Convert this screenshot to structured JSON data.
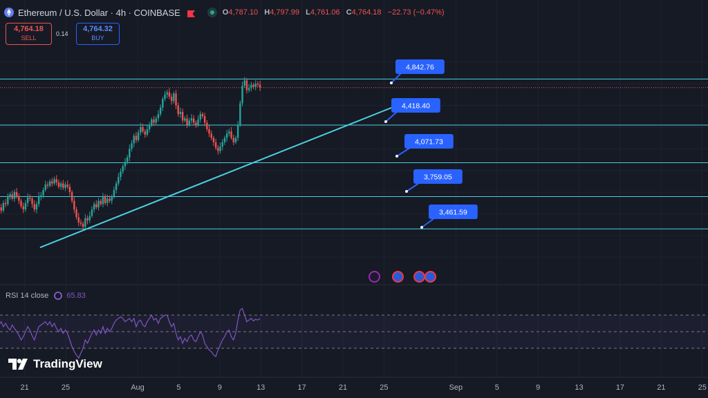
{
  "header": {
    "symbol": "Ethereum / U.S. Dollar · 4h · COINBASE",
    "o_label": "O",
    "o": "4,787.10",
    "h_label": "H",
    "h": "4,797.99",
    "l_label": "L",
    "l": "4,761.06",
    "c_label": "C",
    "c": "4,764.18",
    "change": "−22.73 (−0.47%)"
  },
  "trade": {
    "sell_price": "4,764.18",
    "sell_label": "SELL",
    "spread": "0.14",
    "buy_price": "4,764.32",
    "buy_label": "BUY"
  },
  "rsi": {
    "label": "RSI 14 close",
    "value": "65.83"
  },
  "logo": "TradingView",
  "colors": {
    "up": "#26a69a",
    "down": "#ef5350",
    "rsi": "#7e57c2",
    "levels": "#4dd0e1",
    "callout": "#2962ff",
    "background": "#161a25"
  },
  "chart_data": {
    "type": "candlestick",
    "x_ticks": [
      "21",
      "25",
      "Aug",
      "5",
      "9",
      "13",
      "17",
      "21",
      "25",
      "Sep",
      "5",
      "9",
      "13",
      "17",
      "21",
      "25"
    ],
    "x_tick_days": [
      -11,
      -7,
      0,
      4,
      8,
      12,
      16,
      20,
      24,
      31,
      35,
      39,
      43,
      47,
      51,
      55
    ],
    "horizontal_levels": [
      4842.76,
      4418.4,
      4071.73,
      3759.05,
      3461.59
    ],
    "callouts": [
      "4,842.76",
      "4,418.40",
      "4,071.73",
      "3,759.05",
      "3,461.59"
    ],
    "trendline": {
      "from": [
        -9.5,
        3290
      ],
      "to": [
        25.3,
        4600
      ]
    },
    "last_price": 4764.18,
    "candle_closes": [
      3660,
      3630,
      3700,
      3690,
      3760,
      3780,
      3740,
      3800,
      3760,
      3720,
      3670,
      3640,
      3700,
      3750,
      3740,
      3690,
      3640,
      3690,
      3760,
      3770,
      3820,
      3870,
      3860,
      3900,
      3880,
      3920,
      3890,
      3850,
      3880,
      3840,
      3870,
      3850,
      3800,
      3720,
      3640,
      3570,
      3520,
      3510,
      3480,
      3560,
      3540,
      3580,
      3640,
      3690,
      3660,
      3720,
      3690,
      3760,
      3700,
      3740,
      3720,
      3760,
      3820,
      3880,
      3940,
      3990,
      4040,
      4080,
      4120,
      4200,
      4250,
      4320,
      4280,
      4350,
      4400,
      4360,
      4330,
      4380,
      4420,
      4470,
      4440,
      4480,
      4520,
      4580,
      4660,
      4700,
      4720,
      4680,
      4640,
      4710,
      4600,
      4520,
      4540,
      4460,
      4480,
      4420,
      4460,
      4480,
      4440,
      4420,
      4470,
      4520,
      4500,
      4440,
      4380,
      4340,
      4300,
      4260,
      4210,
      4180,
      4220,
      4260,
      4300,
      4340,
      4360,
      4300,
      4260,
      4300,
      4420,
      4620,
      4780,
      4830,
      4740,
      4760,
      4790,
      4770,
      4800,
      4790,
      4764.18
    ],
    "rsi": [
      58,
      62,
      56,
      60,
      55,
      52,
      58,
      54,
      50,
      46,
      40,
      44,
      50,
      56,
      52,
      45,
      40,
      48,
      56,
      58,
      60,
      62,
      58,
      62,
      56,
      60,
      54,
      50,
      54,
      48,
      52,
      48,
      40,
      32,
      26,
      22,
      18,
      24,
      30,
      40,
      36,
      42,
      48,
      52,
      46,
      52,
      48,
      56,
      48,
      54,
      50,
      54,
      60,
      64,
      66,
      68,
      66,
      62,
      64,
      66,
      62,
      66,
      56,
      62,
      64,
      58,
      56,
      62,
      66,
      70,
      64,
      66,
      60,
      66,
      68,
      70,
      70,
      62,
      56,
      60,
      48,
      40,
      44,
      36,
      42,
      38,
      44,
      46,
      40,
      38,
      44,
      50,
      46,
      36,
      32,
      28,
      26,
      22,
      20,
      28,
      34,
      40,
      44,
      50,
      52,
      44,
      40,
      48,
      64,
      76,
      78,
      70,
      62,
      64,
      66,
      63,
      65,
      64,
      65.83
    ],
    "ylim": [
      3100,
      5100
    ],
    "rsi_ylim": [
      10,
      90
    ],
    "rsi_bands": [
      70,
      50,
      30
    ]
  }
}
